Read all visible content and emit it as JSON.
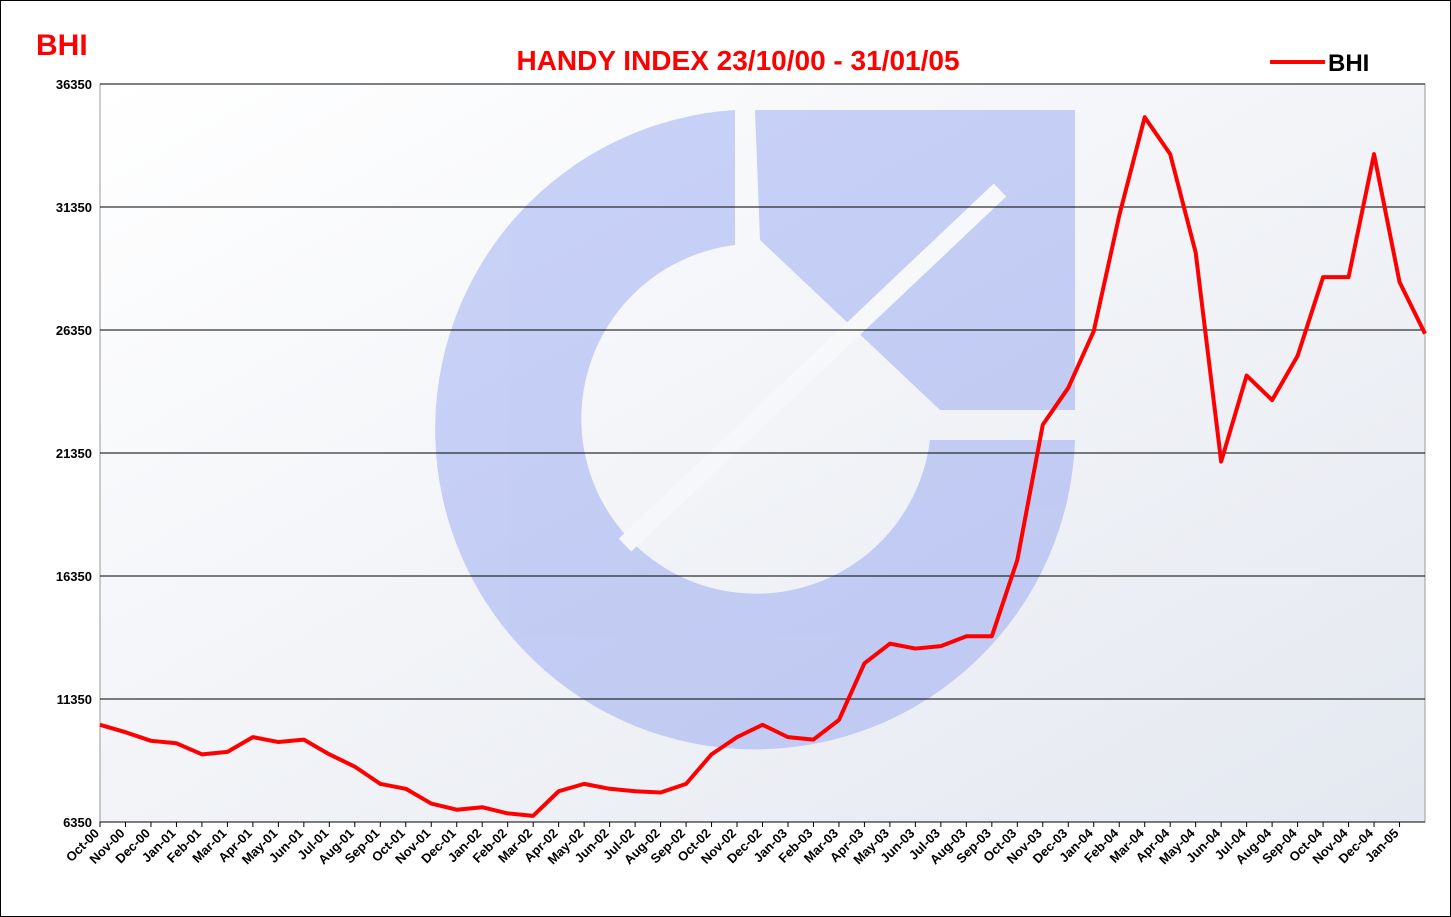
{
  "chart_data": {
    "type": "line",
    "title": "HANDY INDEX 23/10/00 - 31/01/05",
    "corner_label": "BHI",
    "categories": [
      "Oct-00",
      "Nov-00",
      "Dec-00",
      "Jan-01",
      "Feb-01",
      "Mar-01",
      "Apr-01",
      "May-01",
      "Jun-01",
      "Jul-01",
      "Aug-01",
      "Sep-01",
      "Oct-01",
      "Nov-01",
      "Dec-01",
      "Jan-02",
      "Feb-02",
      "Mar-02",
      "Apr-02",
      "May-02",
      "Jun-02",
      "Jul-02",
      "Aug-02",
      "Sep-02",
      "Oct-02",
      "Nov-02",
      "Dec-02",
      "Jan-03",
      "Feb-03",
      "Mar-03",
      "Apr-03",
      "May-03",
      "Jun-03",
      "Jul-03",
      "Aug-03",
      "Sep-03",
      "Oct-03",
      "Nov-03",
      "Dec-03",
      "Jan-04",
      "Feb-04",
      "Mar-04",
      "Apr-04",
      "May-04",
      "Jun-04",
      "Jul-04",
      "Aug-04",
      "Sep-04",
      "Oct-04",
      "Nov-04",
      "Dec-04",
      "Jan-05",
      null
    ],
    "series": [
      {
        "name": "BHI",
        "color": "#ff0000",
        "values": [
          10300,
          10000,
          9650,
          9550,
          9100,
          9200,
          9800,
          9600,
          9700,
          9100,
          8600,
          7900,
          7700,
          7100,
          6850,
          6950,
          6700,
          6600,
          7600,
          7900,
          7700,
          7600,
          7550,
          7900,
          9100,
          9800,
          10300,
          9800,
          9700,
          10500,
          12800,
          13600,
          13400,
          13500,
          13900,
          13900,
          17000,
          22500,
          24000,
          26300,
          31000,
          35000,
          33500,
          29500,
          21000,
          24500,
          23500,
          25300,
          28500,
          28500,
          33500,
          28300,
          26200
        ]
      }
    ],
    "ylim": [
      6350,
      36350
    ],
    "yticks": [
      6350,
      11350,
      16350,
      21350,
      26350,
      31350,
      36350
    ],
    "grid": true,
    "legend": "top-right"
  }
}
